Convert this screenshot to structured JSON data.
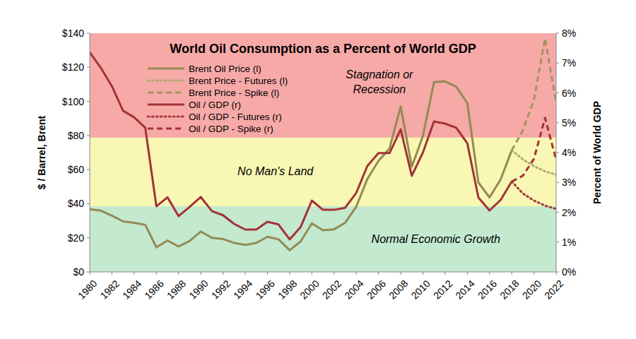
{
  "chart_data": {
    "type": "line",
    "title": "World Oil Consumption as a Percent of World GDP",
    "y_label": "$ / Barrel, Brent",
    "y2_label": "Percent of World GDP",
    "x": [
      1980,
      1981,
      1982,
      1983,
      1984,
      1985,
      1986,
      1987,
      1988,
      1989,
      1990,
      1991,
      1992,
      1993,
      1994,
      1995,
      1996,
      1997,
      1998,
      1999,
      2000,
      2001,
      2002,
      2003,
      2004,
      2005,
      2006,
      2007,
      2008,
      2009,
      2010,
      2011,
      2012,
      2013,
      2014,
      2015,
      2016,
      2017,
      2018,
      2019,
      2020,
      2021,
      2022
    ],
    "xlim": [
      1980,
      2022
    ],
    "xticks": [
      1980,
      1982,
      1984,
      1986,
      1988,
      1990,
      1992,
      1994,
      1996,
      1998,
      2000,
      2002,
      2004,
      2006,
      2008,
      2010,
      2012,
      2014,
      2016,
      2018,
      2020,
      2022
    ],
    "ylim": [
      0,
      140
    ],
    "yticks": [
      {
        "value": 0,
        "label": "$0"
      },
      {
        "value": 20,
        "label": "$20"
      },
      {
        "value": 40,
        "label": "$40"
      },
      {
        "value": 60,
        "label": "$60"
      },
      {
        "value": 80,
        "label": "$80"
      },
      {
        "value": 100,
        "label": "$100"
      },
      {
        "value": 120,
        "label": "$120"
      },
      {
        "value": 140,
        "label": "$140"
      }
    ],
    "y2lim": [
      0,
      8
    ],
    "y2ticks": [
      {
        "value": 0,
        "label": "0%"
      },
      {
        "value": 1,
        "label": "1%"
      },
      {
        "value": 2,
        "label": "2%"
      },
      {
        "value": 3,
        "label": "3%"
      },
      {
        "value": 4,
        "label": "4%"
      },
      {
        "value": 5,
        "label": "5%"
      },
      {
        "value": 6,
        "label": "6%"
      },
      {
        "value": 7,
        "label": "7%"
      },
      {
        "value": 8,
        "label": "8%"
      }
    ],
    "legend": "upper left",
    "grid": false,
    "bands": [
      {
        "lines": [
          "Stagnation or",
          "Recession"
        ],
        "range": [
          4.5,
          8
        ],
        "color": "#f6a9a7"
      },
      {
        "lines": [
          "No Man's Land"
        ],
        "range": [
          2.2,
          4.5
        ],
        "color": "#f8f7b4"
      },
      {
        "lines": [
          "Normal Economic Growth"
        ],
        "range": [
          0,
          2.2
        ],
        "color": "#c3e9cf"
      }
    ],
    "series": [
      {
        "name": "Brent Oil Price (l)",
        "color": "#948a54",
        "line_style": "solid",
        "values": [
          36.8,
          35.9,
          33.0,
          29.6,
          28.8,
          27.6,
          14.4,
          18.4,
          14.9,
          18.2,
          23.7,
          20.0,
          19.3,
          17.0,
          15.8,
          17.0,
          20.6,
          19.1,
          12.7,
          17.9,
          28.5,
          24.4,
          25.0,
          28.8,
          38.3,
          54.5,
          65.1,
          72.4,
          97.0,
          61.7,
          79.6,
          111.3,
          111.7,
          108.7,
          99.0,
          52.4,
          43.7,
          54.2,
          71.3,
          null,
          null,
          null,
          null
        ]
      },
      {
        "name": "Brent Price - Futures (l)",
        "color": "#b3a972",
        "line_style": "dotted",
        "values": [
          null,
          null,
          null,
          null,
          null,
          null,
          null,
          null,
          null,
          null,
          null,
          null,
          null,
          null,
          null,
          null,
          null,
          null,
          null,
          null,
          null,
          null,
          null,
          null,
          null,
          null,
          null,
          null,
          null,
          null,
          null,
          null,
          null,
          null,
          null,
          null,
          null,
          null,
          71.3,
          66,
          62,
          59,
          57
        ]
      },
      {
        "name": "Brent Price - Spike (l)",
        "color": "#a0965f",
        "line_style": "dashed",
        "values": [
          null,
          null,
          null,
          null,
          null,
          null,
          null,
          null,
          null,
          null,
          null,
          null,
          null,
          null,
          null,
          null,
          null,
          null,
          null,
          null,
          null,
          null,
          null,
          null,
          null,
          null,
          null,
          null,
          null,
          null,
          null,
          null,
          null,
          null,
          null,
          null,
          null,
          null,
          71.3,
          83,
          101,
          137,
          99
        ]
      },
      {
        "name": "Oil / GDP (r)",
        "color": "#a33236",
        "line_style": "solid",
        "axis": "y2",
        "values": [
          7.36,
          6.84,
          6.22,
          5.4,
          5.18,
          4.83,
          2.2,
          2.5,
          1.87,
          2.18,
          2.51,
          2.04,
          1.9,
          1.61,
          1.42,
          1.42,
          1.68,
          1.59,
          1.09,
          1.51,
          2.39,
          2.08,
          2.08,
          2.15,
          2.65,
          3.55,
          3.98,
          3.98,
          4.78,
          3.22,
          4.0,
          5.04,
          4.97,
          4.83,
          4.31,
          2.49,
          2.06,
          2.41,
          3.03,
          null,
          null,
          null,
          null
        ]
      },
      {
        "name": "Oil / GDP - Futures (r)",
        "color": "#a83a3e",
        "line_style": "dotted",
        "axis": "y2",
        "values": [
          null,
          null,
          null,
          null,
          null,
          null,
          null,
          null,
          null,
          null,
          null,
          null,
          null,
          null,
          null,
          null,
          null,
          null,
          null,
          null,
          null,
          null,
          null,
          null,
          null,
          null,
          null,
          null,
          null,
          null,
          null,
          null,
          null,
          null,
          null,
          null,
          null,
          null,
          3.03,
          2.63,
          2.39,
          2.22,
          2.11
        ]
      },
      {
        "name": "Oil / GDP - Spike (r)",
        "color": "#a33236",
        "line_style": "dashed",
        "axis": "y2",
        "values": [
          null,
          null,
          null,
          null,
          null,
          null,
          null,
          null,
          null,
          null,
          null,
          null,
          null,
          null,
          null,
          null,
          null,
          null,
          null,
          null,
          null,
          null,
          null,
          null,
          null,
          null,
          null,
          null,
          null,
          null,
          null,
          null,
          null,
          null,
          null,
          null,
          null,
          null,
          3.03,
          3.22,
          3.79,
          5.16,
          3.76
        ]
      }
    ]
  }
}
